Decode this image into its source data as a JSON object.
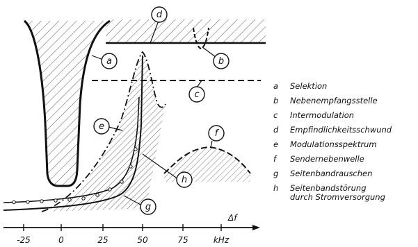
{
  "callouts": {
    "a": "a",
    "b": "b",
    "c": "c",
    "d": "d",
    "e": "e",
    "f": "f",
    "g": "g",
    "h": "h"
  },
  "legend": [
    {
      "key": "a",
      "label": "Selektion"
    },
    {
      "key": "b",
      "label": "Nebenempfangsstelle"
    },
    {
      "key": "c",
      "label": "Intermodulation"
    },
    {
      "key": "d",
      "label": "Empfindlichkeitsschwund"
    },
    {
      "key": "e",
      "label": "Modulationsspektrum"
    },
    {
      "key": "f",
      "label": "Sendernebenwelle"
    },
    {
      "key": "g",
      "label": "Seitenbandrauschen"
    },
    {
      "key": "h",
      "label": "Seitenbandstörung\ndurch Stromversorgung"
    }
  ],
  "axis": {
    "ticks": [
      "-25",
      "0",
      "25",
      "50",
      "75",
      "kHz"
    ],
    "variable": "Δf"
  },
  "colors": {
    "ink": "#111111",
    "paper": "#ffffff"
  }
}
